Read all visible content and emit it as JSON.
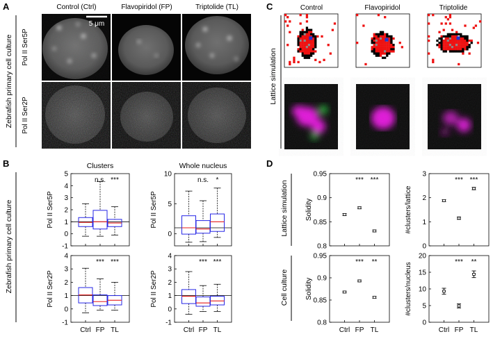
{
  "panel_letters": {
    "a": "A",
    "b": "B",
    "c": "C",
    "d": "D"
  },
  "panel_a": {
    "column_titles": [
      "Control (Ctrl)",
      "Flavopiridol (FP)",
      "Triptolide (TL)"
    ],
    "row_labels": [
      "Pol II Ser5P",
      "Pol II Ser2P"
    ],
    "side_label": "Zebrafish primary cell culture",
    "scale_bar_label": "5 μm"
  },
  "panel_b": {
    "side_label": "Zebrafish primary cell culture",
    "col_titles": [
      "Clusters",
      "Whole nucleus"
    ]
  },
  "panel_c": {
    "side_label": "Lattice simulation",
    "column_titles": [
      "Control",
      "Flavopiridol",
      "Triptolide"
    ]
  },
  "panel_d": {
    "row_labels": [
      "Lattice simulation",
      "Cell culture"
    ]
  },
  "colors": {
    "box": "#2525e6",
    "median": "#e61c1c",
    "whisker": "#000000",
    "lattice_red": "#ee1111",
    "lattice_black": "#000000",
    "lattice_gray": "#8a8a8a",
    "lattice_blue": "#2233cc"
  },
  "chart_data": [
    {
      "id": "B-clusters-ser5p",
      "type": "box",
      "title": "Clusters",
      "ylabel": "Pol II Ser5P",
      "categories": [
        "Ctrl",
        "FP",
        "TL"
      ],
      "ylim": [
        -1,
        5
      ],
      "yticks": [
        -1,
        0,
        1,
        2,
        3,
        4,
        5
      ],
      "show_xticklabels": false,
      "reference_line": 1,
      "boxes": [
        {
          "whisker_low": -0.2,
          "q1": 0.6,
          "median": 0.95,
          "q3": 1.35,
          "whisker_high": 2.5
        },
        {
          "whisker_low": -0.2,
          "q1": 0.4,
          "median": 1.0,
          "q3": 1.95,
          "whisker_high": 4.35
        },
        {
          "whisker_low": -0.1,
          "q1": 0.6,
          "median": 0.9,
          "q3": 1.2,
          "whisker_high": 2.25
        }
      ],
      "significance": [
        "",
        "n.s.",
        "***"
      ]
    },
    {
      "id": "B-whole-ser5p",
      "type": "box",
      "title": "Whole nucleus",
      "ylabel": "Pol II Ser5P",
      "categories": [
        "Ctrl",
        "FP",
        "TL"
      ],
      "ylim": [
        -2,
        10
      ],
      "yticks": [
        0,
        5,
        10
      ],
      "show_xticklabels": false,
      "reference_line": 1,
      "boxes": [
        {
          "whisker_low": -1.4,
          "q1": -0.05,
          "median": 1.0,
          "q3": 3.0,
          "whisker_high": 7.1
        },
        {
          "whisker_low": -1.3,
          "q1": 0.1,
          "median": 0.8,
          "q3": 2.2,
          "whisker_high": 5.5
        },
        {
          "whisker_low": -0.6,
          "q1": 0.4,
          "median": 2.0,
          "q3": 3.3,
          "whisker_high": 7.6
        }
      ],
      "significance": [
        "",
        "n.s.",
        "*"
      ]
    },
    {
      "id": "B-clusters-ser2p",
      "type": "box",
      "ylabel": "Pol II Ser2P",
      "categories": [
        "Ctrl",
        "FP",
        "TL"
      ],
      "ylim": [
        -1,
        4
      ],
      "yticks": [
        -1,
        0,
        1,
        2,
        3,
        4
      ],
      "show_xticklabels": true,
      "reference_line": 1,
      "boxes": [
        {
          "whisker_low": -0.3,
          "q1": 0.45,
          "median": 1.05,
          "q3": 1.6,
          "whisker_high": 3.05
        },
        {
          "whisker_low": -0.1,
          "q1": 0.25,
          "median": 0.55,
          "q3": 1.05,
          "whisker_high": 2.25
        },
        {
          "whisker_low": -0.1,
          "q1": 0.3,
          "median": 0.65,
          "q3": 1.0,
          "whisker_high": 2.0
        }
      ],
      "significance": [
        "",
        "***",
        "***"
      ]
    },
    {
      "id": "B-whole-ser2p",
      "type": "box",
      "ylabel": "Pol II Ser2P",
      "categories": [
        "Ctrl",
        "FP",
        "TL"
      ],
      "ylim": [
        -1,
        4
      ],
      "yticks": [
        -1,
        0,
        1,
        2,
        3,
        4
      ],
      "show_xticklabels": true,
      "reference_line": 1,
      "boxes": [
        {
          "whisker_low": -0.4,
          "q1": 0.4,
          "median": 0.95,
          "q3": 1.45,
          "whisker_high": 2.8
        },
        {
          "whisker_low": -0.2,
          "q1": 0.2,
          "median": 0.45,
          "q3": 0.9,
          "whisker_high": 1.75
        },
        {
          "whisker_low": -0.2,
          "q1": 0.3,
          "median": 0.6,
          "q3": 0.95,
          "whisker_high": 1.85
        }
      ],
      "significance": [
        "",
        "***",
        "***"
      ]
    },
    {
      "id": "D-lattice-solidity",
      "type": "errorbar",
      "ylabel": "Solidity",
      "categories": [
        "Ctrl",
        "FP",
        "TL"
      ],
      "ylim": [
        0.8,
        0.95
      ],
      "yticks": [
        0.8,
        0.85,
        0.9,
        0.95
      ],
      "show_xticklabels": false,
      "points": [
        {
          "mean": 0.865,
          "err": 0.002
        },
        {
          "mean": 0.879,
          "err": 0.002
        },
        {
          "mean": 0.831,
          "err": 0.002
        }
      ],
      "significance": [
        "",
        "***",
        "***"
      ]
    },
    {
      "id": "D-lattice-clusters",
      "type": "errorbar",
      "ylabel": "#clusters/lattice",
      "categories": [
        "Ctrl",
        "FP",
        "TL"
      ],
      "ylim": [
        0,
        3
      ],
      "yticks": [
        0,
        1,
        2,
        3
      ],
      "show_xticklabels": false,
      "points": [
        {
          "mean": 1.88,
          "err": 0.04
        },
        {
          "mean": 1.15,
          "err": 0.05
        },
        {
          "mean": 2.38,
          "err": 0.05
        }
      ],
      "significance": [
        "",
        "***",
        "***"
      ]
    },
    {
      "id": "D-culture-solidity",
      "type": "errorbar",
      "ylabel": "Solidity",
      "categories": [
        "Ctrl",
        "FP",
        "TL"
      ],
      "ylim": [
        0.8,
        0.95
      ],
      "yticks": [
        0.8,
        0.85,
        0.9,
        0.95
      ],
      "show_xticklabels": true,
      "points": [
        {
          "mean": 0.868,
          "err": 0.002
        },
        {
          "mean": 0.893,
          "err": 0.002
        },
        {
          "mean": 0.856,
          "err": 0.002
        }
      ],
      "significance": [
        "",
        "***",
        "**"
      ]
    },
    {
      "id": "D-culture-clusters",
      "type": "errorbar",
      "ylabel": "#clusters/nucleus",
      "categories": [
        "Ctrl",
        "FP",
        "TL"
      ],
      "ylim": [
        0,
        20
      ],
      "yticks": [
        0,
        5,
        10,
        15,
        20
      ],
      "show_xticklabels": true,
      "points": [
        {
          "mean": 9.3,
          "err": 0.9
        },
        {
          "mean": 4.9,
          "err": 0.6
        },
        {
          "mean": 14.4,
          "err": 1.0
        }
      ],
      "significance": [
        "",
        "***",
        "**"
      ]
    }
  ]
}
